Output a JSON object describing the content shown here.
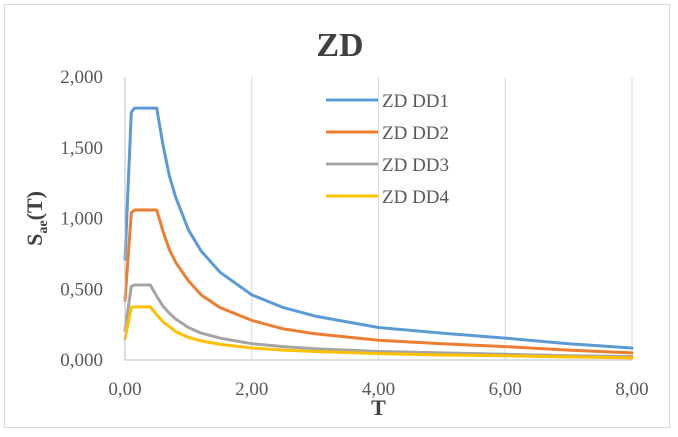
{
  "chart_data": {
    "type": "line",
    "title": "ZD",
    "xlabel": "T",
    "ylabel_main": "S",
    "ylabel_sub": "ae",
    "ylabel_tail": "(T)",
    "xlim": [
      0,
      8
    ],
    "ylim": [
      0,
      2
    ],
    "x_ticks": [
      0,
      2,
      4,
      6,
      8
    ],
    "x_tick_labels": [
      "0,00",
      "2,00",
      "4,00",
      "6,00",
      "8,00"
    ],
    "y_ticks": [
      0,
      0.5,
      1.0,
      1.5,
      2.0
    ],
    "y_tick_labels": [
      "0,000",
      "0,500",
      "1,000",
      "1,500",
      "2,000"
    ],
    "grid": "vertical",
    "legend_position": "top-right",
    "series": [
      {
        "name": "ZD DD1",
        "color": "#5b9bd5",
        "x": [
          0,
          0.1,
          0.15,
          0.5,
          0.6,
          0.7,
          0.8,
          1.0,
          1.2,
          1.5,
          2.0,
          2.5,
          3.0,
          4.0,
          5.0,
          6.0,
          7.0,
          8.0
        ],
        "y": [
          0.71,
          1.75,
          1.78,
          1.78,
          1.52,
          1.3,
          1.15,
          0.92,
          0.77,
          0.62,
          0.46,
          0.37,
          0.31,
          0.23,
          0.19,
          0.155,
          0.115,
          0.085
        ]
      },
      {
        "name": "ZD DD2",
        "color": "#ed7d31",
        "x": [
          0,
          0.1,
          0.15,
          0.5,
          0.6,
          0.7,
          0.8,
          1.0,
          1.2,
          1.5,
          2.0,
          2.5,
          3.0,
          4.0,
          5.0,
          6.0,
          7.0,
          8.0
        ],
        "y": [
          0.42,
          1.04,
          1.06,
          1.06,
          0.91,
          0.78,
          0.69,
          0.56,
          0.46,
          0.37,
          0.28,
          0.22,
          0.185,
          0.14,
          0.115,
          0.095,
          0.07,
          0.05
        ]
      },
      {
        "name": "ZD DD3",
        "color": "#a5a5a5",
        "x": [
          0,
          0.1,
          0.15,
          0.4,
          0.5,
          0.6,
          0.7,
          0.8,
          1.0,
          1.2,
          1.5,
          2.0,
          2.5,
          3.0,
          4.0,
          5.0,
          6.0,
          7.0,
          8.0
        ],
        "y": [
          0.21,
          0.52,
          0.53,
          0.53,
          0.45,
          0.38,
          0.33,
          0.29,
          0.23,
          0.19,
          0.155,
          0.115,
          0.095,
          0.08,
          0.06,
          0.05,
          0.04,
          0.03,
          0.025
        ]
      },
      {
        "name": "ZD DD4",
        "color": "#ffc000",
        "x": [
          0,
          0.1,
          0.15,
          0.4,
          0.5,
          0.6,
          0.7,
          0.8,
          1.0,
          1.2,
          1.5,
          2.0,
          2.5,
          3.0,
          4.0,
          5.0,
          6.0,
          7.0,
          8.0
        ],
        "y": [
          0.15,
          0.37,
          0.375,
          0.375,
          0.32,
          0.27,
          0.235,
          0.2,
          0.16,
          0.135,
          0.11,
          0.085,
          0.07,
          0.06,
          0.045,
          0.035,
          0.03,
          0.022,
          0.015
        ]
      }
    ]
  }
}
